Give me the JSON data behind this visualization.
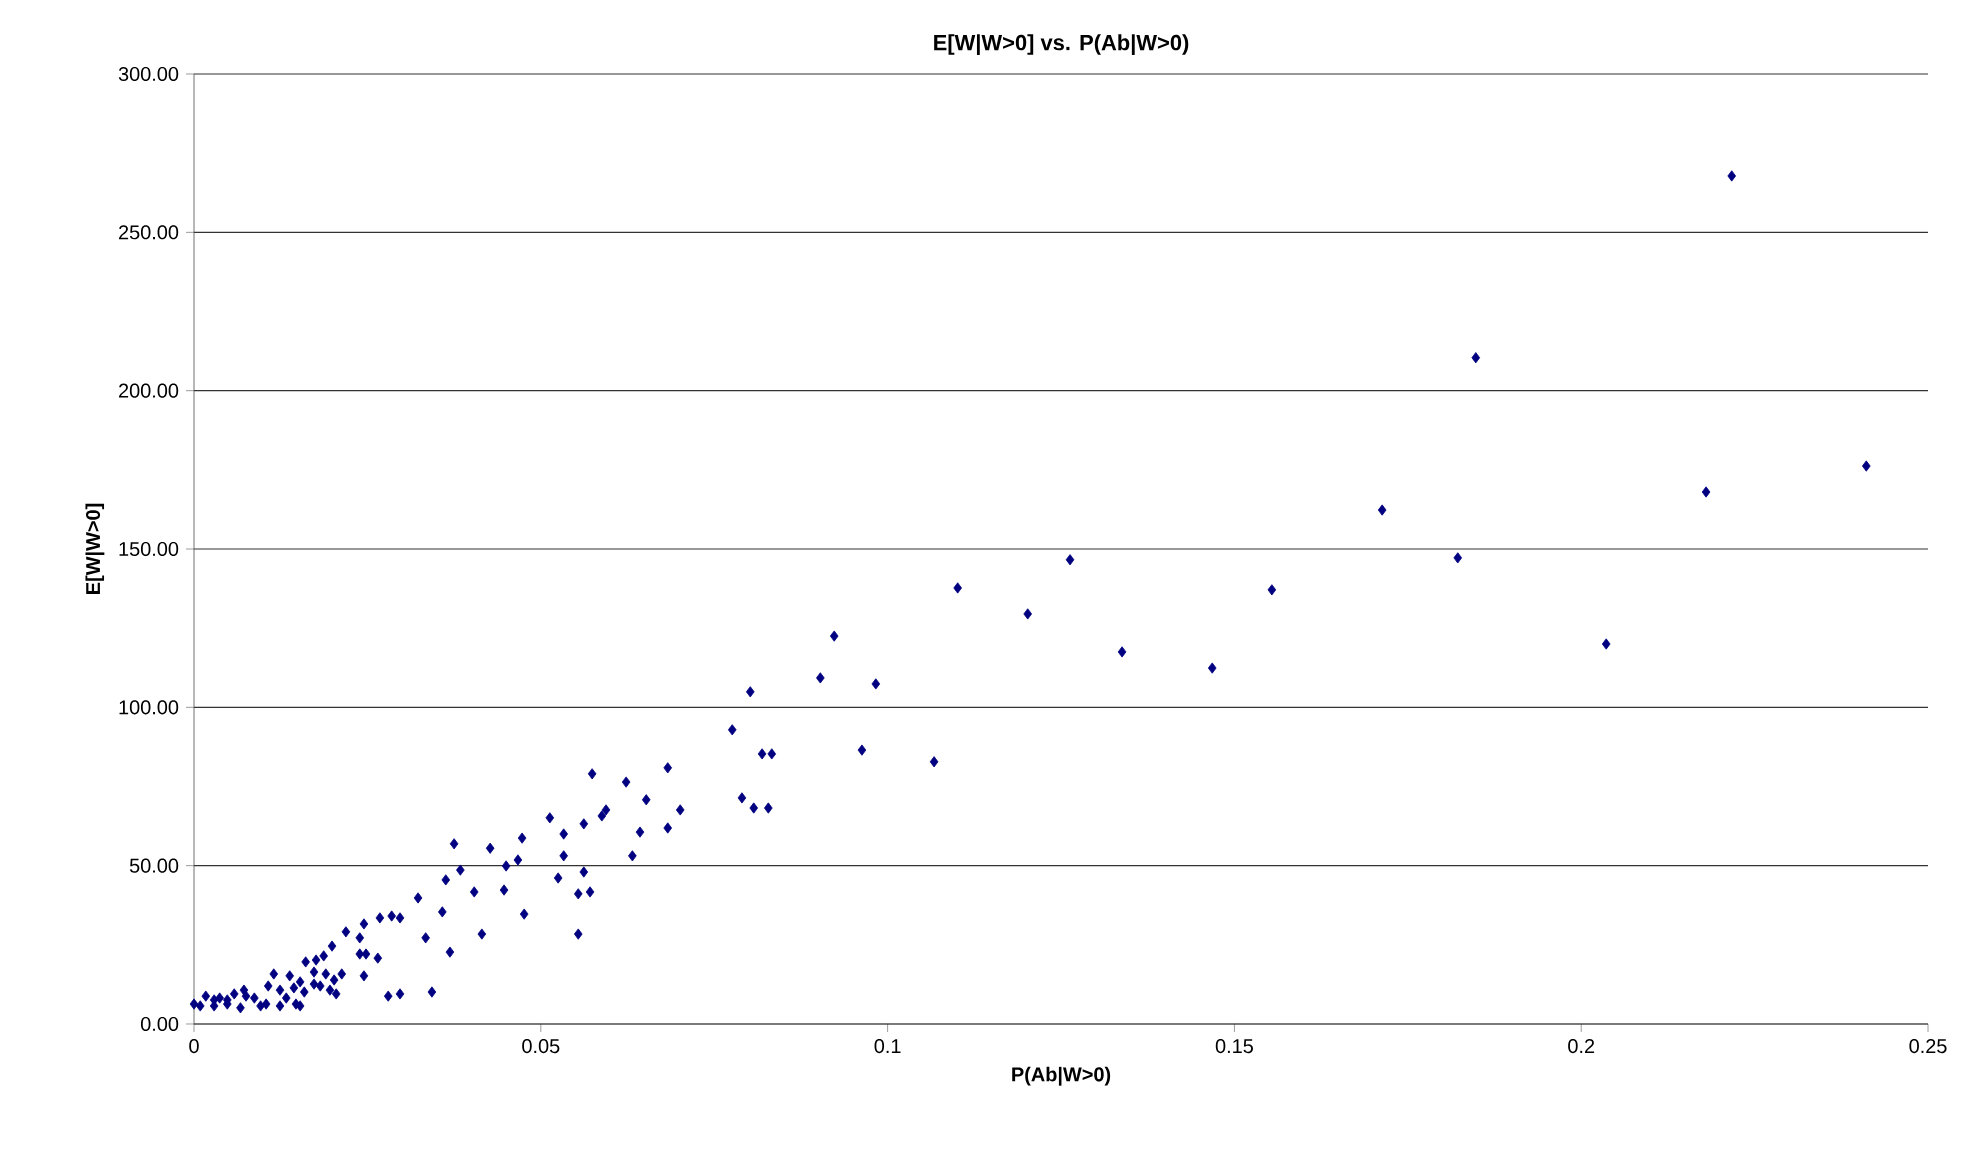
{
  "chart_data": {
    "type": "scatter",
    "title": "E[W|W>0] vs. P(Ab|W>0)",
    "xlabel": "P(Ab|W>0)",
    "ylabel": "E[W|W>0]",
    "x": [
      0.2217,
      0.1848,
      0.218,
      0.2411,
      0.1713,
      0.1822,
      0.1263,
      0.1202,
      0.1338,
      0.1468,
      0.1554,
      0.2036,
      0.1101,
      0.0923,
      0.0903,
      0.0983,
      0.0802,
      0.0776,
      0.0963,
      0.1067,
      0.0819,
      0.0833,
      0.079,
      0.0807,
      0.0828,
      0.0574,
      0.0623,
      0.0683,
      0.0513,
      0.0533,
      0.0562,
      0.0588,
      0.0594,
      0.0652,
      0.0701,
      0.0643,
      0.0683,
      0.0473,
      0.0427,
      0.0375,
      0.0533,
      0.045,
      0.0467,
      0.0632,
      0.0384,
      0.0363,
      0.0404,
      0.0447,
      0.0525,
      0.0562,
      0.0554,
      0.0571,
      0.0476,
      0.0554,
      0.0415,
      0.0369,
      0.0334,
      0.0323,
      0.0358,
      0.0343,
      0.028,
      0.0297,
      0.0245,
      0.0268,
      0.0285,
      0.0297,
      0.0219,
      0.0199,
      0.0239,
      0.0239,
      0.0248,
      0.0265,
      0.0245,
      0.0213,
      0.019,
      0.0202,
      0.0187,
      0.0161,
      0.0176,
      0.0173,
      0.0138,
      0.0153,
      0.0115,
      0.0107,
      0.0124,
      0.0144,
      0.0159,
      0.0147,
      0.0124,
      0.0075,
      0.0087,
      0.0058,
      0.0037,
      0.0017,
      0,
      0.0009,
      0.0029,
      0.0048,
      0.0067,
      0.0096,
      0.0104,
      0.0072,
      0.0133,
      0.0173,
      0.0182,
      0.0153,
      0.0196,
      0.0205,
      0.0029,
      0.0048
    ],
    "values": [
      267.8,
      210.4,
      168.0,
      176.2,
      162.3,
      147.2,
      146.6,
      129.5,
      117.5,
      112.4,
      137.1,
      120.0,
      137.7,
      122.5,
      109.3,
      107.4,
      104.9,
      92.9,
      86.5,
      82.8,
      85.3,
      85.3,
      71.4,
      68.2,
      68.2,
      79.0,
      76.4,
      80.9,
      65.1,
      60.0,
      63.2,
      65.7,
      67.6,
      70.8,
      67.6,
      60.6,
      61.9,
      58.7,
      55.5,
      56.9,
      53.1,
      49.9,
      51.8,
      53.1,
      48.6,
      45.5,
      41.7,
      42.3,
      46.1,
      48.0,
      41.1,
      41.7,
      34.7,
      28.4,
      28.4,
      22.7,
      27.2,
      39.8,
      35.4,
      10.1,
      8.8,
      9.5,
      31.6,
      33.5,
      34.1,
      33.5,
      29.1,
      24.6,
      27.2,
      22.1,
      22.1,
      20.8,
      15.2,
      15.8,
      15.8,
      13.9,
      21.5,
      19.6,
      20.2,
      16.4,
      15.2,
      13.3,
      15.8,
      12.0,
      10.7,
      11.4,
      10.1,
      6.3,
      5.7,
      8.8,
      8.2,
      9.5,
      8.2,
      8.8,
      6.3,
      5.7,
      5.7,
      6.3,
      5.1,
      5.7,
      6.3,
      10.7,
      8.2,
      12.6,
      12.0,
      5.7,
      10.7,
      9.5,
      7.6,
      7.6
    ],
    "color": "#000080",
    "marker": "diamond",
    "grid": "y",
    "xlim": [
      0,
      0.25
    ],
    "xticks": [
      0,
      0.05,
      0.1,
      0.15,
      0.2,
      0.25
    ],
    "ylim": [
      0,
      300
    ],
    "yticks": [
      {
        "value": 0,
        "label": "0.00"
      },
      {
        "value": 50,
        "label": "50.00"
      },
      {
        "value": 100,
        "label": "100.00"
      },
      {
        "value": 150,
        "label": "150.00"
      },
      {
        "value": 200,
        "label": "200.00"
      },
      {
        "value": 250,
        "label": "250.00"
      },
      {
        "value": 300,
        "label": "300.00"
      }
    ]
  }
}
